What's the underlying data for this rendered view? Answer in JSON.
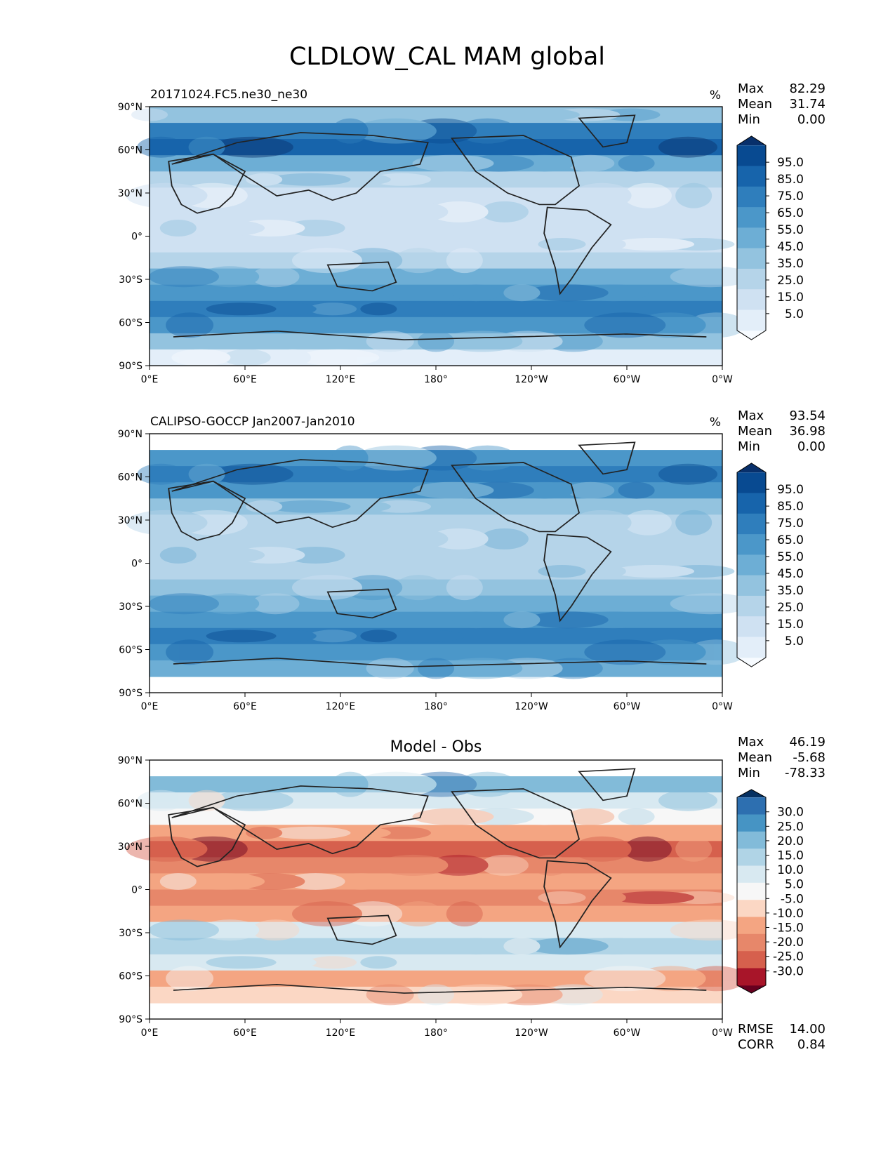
{
  "title": "CLDLOW_CAL MAM global",
  "palettes": {
    "blues": [
      "#f7fbff",
      "#e3eef9",
      "#cfe1f2",
      "#b5d4e9",
      "#93c3df",
      "#6daed5",
      "#4b97c9",
      "#2f7ebc",
      "#1764ab",
      "#084a91",
      "#08306b"
    ],
    "rdbu": [
      "#67001f",
      "#a81529",
      "#d6604d",
      "#e7876a",
      "#f4a582",
      "#fbd7c4",
      "#f7f7f7",
      "#d8e9f1",
      "#b0d4e6",
      "#82bbd9",
      "#4694c4",
      "#2d6fb0",
      "#053061"
    ]
  },
  "chart_data": [
    {
      "type": "heatmap",
      "panel": "model",
      "title": "",
      "left_title": "20171024.FC5.ne30_ne30",
      "units": "%",
      "stats": [
        {
          "label": "Max",
          "value": "82.29"
        },
        {
          "label": "Mean",
          "value": "31.74"
        },
        {
          "label": "Min",
          "value": "0.00"
        }
      ],
      "palette": "blues",
      "colorbar_ticks": [
        "95.0",
        "85.0",
        "75.0",
        "65.0",
        "55.0",
        "45.0",
        "35.0",
        "25.0",
        "15.0",
        "5.0"
      ],
      "xticks": [
        "0°E",
        "60°E",
        "120°E",
        "180°",
        "120°W",
        "60°W",
        "0°W"
      ],
      "yticks": [
        "90°N",
        "60°N",
        "30°N",
        "0°",
        "30°S",
        "60°S",
        "90°S"
      ],
      "zonal_mean_profile": [
        4,
        7,
        8,
        5,
        3,
        2,
        2,
        2,
        2,
        3,
        5,
        6,
        7,
        6,
        4,
        1
      ],
      "footer": []
    },
    {
      "type": "heatmap",
      "panel": "obs",
      "title": "",
      "left_title": "CALIPSO-GOCCP Jan2007-Jan2010",
      "units": "%",
      "stats": [
        {
          "label": "Max",
          "value": "93.54"
        },
        {
          "label": "Mean",
          "value": "36.98"
        },
        {
          "label": "Min",
          "value": "0.00"
        }
      ],
      "palette": "blues",
      "colorbar_ticks": [
        "95.0",
        "85.0",
        "75.0",
        "65.0",
        "55.0",
        "45.0",
        "35.0",
        "25.0",
        "15.0",
        "5.0"
      ],
      "xticks": [
        "0°E",
        "60°E",
        "120°E",
        "180°",
        "120°W",
        "60°W",
        "0°W"
      ],
      "yticks": [
        "90°N",
        "60°N",
        "30°N",
        "0°",
        "30°S",
        "60°S",
        "90°S"
      ],
      "zonal_mean_profile": [
        null,
        6,
        7,
        6,
        4,
        3,
        3,
        3,
        3,
        4,
        5,
        6,
        7,
        6,
        5,
        null
      ],
      "footer": []
    },
    {
      "type": "heatmap",
      "panel": "diff",
      "title": "Model - Obs",
      "left_title": "",
      "units": "",
      "stats": [
        {
          "label": "Max",
          "value": "46.19"
        },
        {
          "label": "Mean",
          "value": "-5.68"
        },
        {
          "label": "Min",
          "value": "-78.33"
        }
      ],
      "palette": "rdbu",
      "colorbar_ticks": [
        "30.0",
        "25.0",
        "20.0",
        "15.0",
        "10.0",
        "5.0",
        "-5.0",
        "-10.0",
        "-15.0",
        "-20.0",
        "-25.0",
        "-30.0"
      ],
      "xticks": [
        "0°E",
        "60°E",
        "120°E",
        "180°",
        "120°W",
        "60°W",
        "0°W"
      ],
      "yticks": [
        "90°N",
        "60°N",
        "30°N",
        "0°",
        "30°S",
        "60°S",
        "90°S"
      ],
      "zonal_mean_profile": [
        null,
        9,
        7,
        6,
        4,
        2,
        3,
        4,
        3,
        4,
        7,
        8,
        7,
        4,
        5,
        null
      ],
      "footer": [
        {
          "label": "RMSE",
          "value": "14.00"
        },
        {
          "label": "CORR",
          "value": "0.84"
        }
      ]
    }
  ]
}
